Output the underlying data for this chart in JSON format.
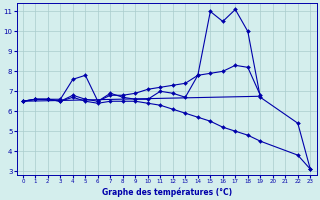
{
  "title": "Graphe des températures (°C)",
  "background_color": "#d4eeed",
  "grid_color": "#aacccc",
  "line_color": "#0000aa",
  "xlim": [
    -0.5,
    23.5
  ],
  "ylim": [
    2.8,
    11.4
  ],
  "xticks": [
    0,
    1,
    2,
    3,
    4,
    5,
    6,
    7,
    8,
    9,
    10,
    11,
    12,
    13,
    14,
    15,
    16,
    17,
    18,
    19,
    20,
    21,
    22,
    23
  ],
  "yticks": [
    3,
    4,
    5,
    6,
    7,
    8,
    9,
    10,
    11
  ],
  "series": [
    {
      "x": [
        0,
        1,
        2,
        3,
        4,
        5,
        6,
        7,
        8,
        9,
        10,
        11,
        12,
        13,
        14,
        15,
        16,
        17,
        18,
        19,
        22,
        23
      ],
      "y": [
        6.5,
        6.6,
        6.6,
        6.6,
        7.6,
        7.8,
        6.5,
        6.9,
        6.7,
        6.6,
        6.6,
        7.0,
        6.9,
        6.7,
        7.8,
        11.0,
        10.5,
        11.1,
        10.0,
        6.7,
        5.4,
        3.1
      ],
      "marker": "D",
      "markersize": 2.0
    },
    {
      "x": [
        0,
        1,
        2,
        3,
        4,
        5,
        6,
        7,
        8,
        9,
        10,
        11,
        12,
        13,
        14,
        15,
        16,
        17,
        18,
        19
      ],
      "y": [
        6.5,
        6.6,
        6.6,
        6.5,
        6.8,
        6.6,
        6.5,
        6.8,
        6.8,
        6.9,
        7.1,
        7.2,
        7.3,
        7.4,
        7.8,
        7.9,
        8.0,
        8.3,
        8.2,
        6.8
      ],
      "marker": "D",
      "markersize": 2.0
    },
    {
      "x": [
        0,
        1,
        2,
        3,
        4,
        5,
        6,
        7,
        8,
        9,
        10,
        11,
        12,
        13,
        14,
        15,
        16,
        17,
        18,
        19,
        22,
        23
      ],
      "y": [
        6.5,
        6.6,
        6.6,
        6.5,
        6.7,
        6.5,
        6.4,
        6.5,
        6.5,
        6.5,
        6.4,
        6.3,
        6.1,
        5.9,
        5.7,
        5.5,
        5.2,
        5.0,
        4.8,
        4.5,
        3.8,
        3.1
      ],
      "marker": "D",
      "markersize": 2.0
    },
    {
      "x": [
        0,
        19
      ],
      "y": [
        6.5,
        6.75
      ],
      "marker": null,
      "markersize": 0
    }
  ]
}
